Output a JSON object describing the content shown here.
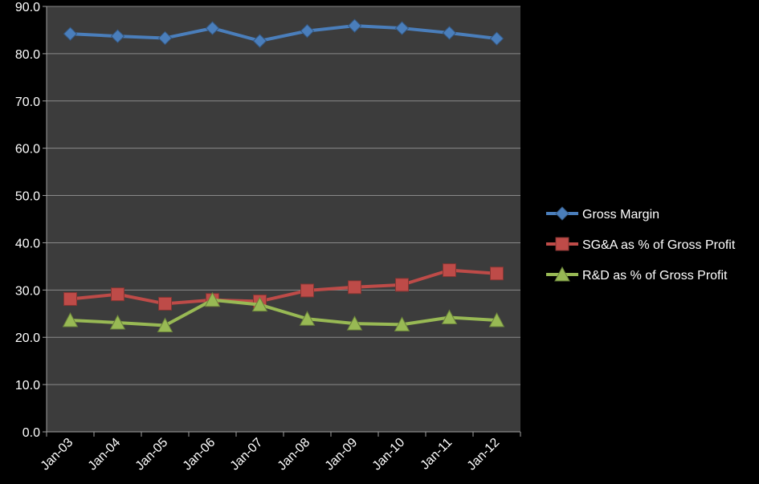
{
  "chart_data": {
    "type": "line",
    "title": "",
    "xlabel": "",
    "ylabel": "",
    "categories": [
      "Jan-03",
      "Jan-04",
      "Jan-05",
      "Jan-06",
      "Jan-07",
      "Jan-08",
      "Jan-09",
      "Jan-10",
      "Jan-11",
      "Jan-12"
    ],
    "ylim": [
      0,
      90
    ],
    "yticks": [
      "0.0",
      "10.0",
      "20.0",
      "30.0",
      "40.0",
      "50.0",
      "60.0",
      "70.0",
      "80.0",
      "90.0"
    ],
    "grid": "horizontal",
    "legend_position": "right",
    "series": [
      {
        "name": "Gross Margin",
        "color": "#4a7ebb",
        "marker": "diamond",
        "values": [
          84.2,
          83.7,
          83.3,
          85.4,
          82.7,
          84.8,
          85.9,
          85.4,
          84.4,
          83.2
        ]
      },
      {
        "name": "SG&A as % of Gross Profit",
        "color": "#be4b48",
        "marker": "square",
        "values": [
          28.1,
          29.1,
          27.1,
          27.9,
          27.6,
          29.9,
          30.6,
          31.1,
          34.2,
          33.5
        ]
      },
      {
        "name": "R&D as % of Gross Profit",
        "color": "#98b954",
        "marker": "triangle",
        "values": [
          23.6,
          23.1,
          22.5,
          27.9,
          26.9,
          23.9,
          22.9,
          22.7,
          24.2,
          23.6
        ]
      }
    ]
  }
}
